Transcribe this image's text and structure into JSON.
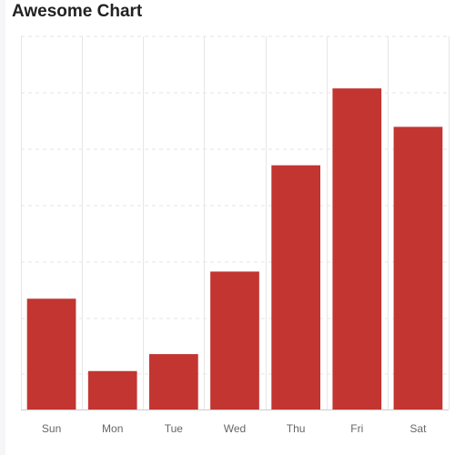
{
  "chart_data": {
    "type": "bar",
    "title": "Awesome Chart",
    "categories": [
      "Sun",
      "Mon",
      "Tue",
      "Wed",
      "Thu",
      "Fri",
      "Sat"
    ],
    "values": [
      9.8,
      3.4,
      4.9,
      12.2,
      21.6,
      28.4,
      25.0
    ],
    "ylim": [
      0,
      33
    ],
    "xlabel": "",
    "ylabel": "",
    "grid": true,
    "colors": {
      "bar": "#c23531",
      "grid": "#e6e6e6"
    }
  }
}
